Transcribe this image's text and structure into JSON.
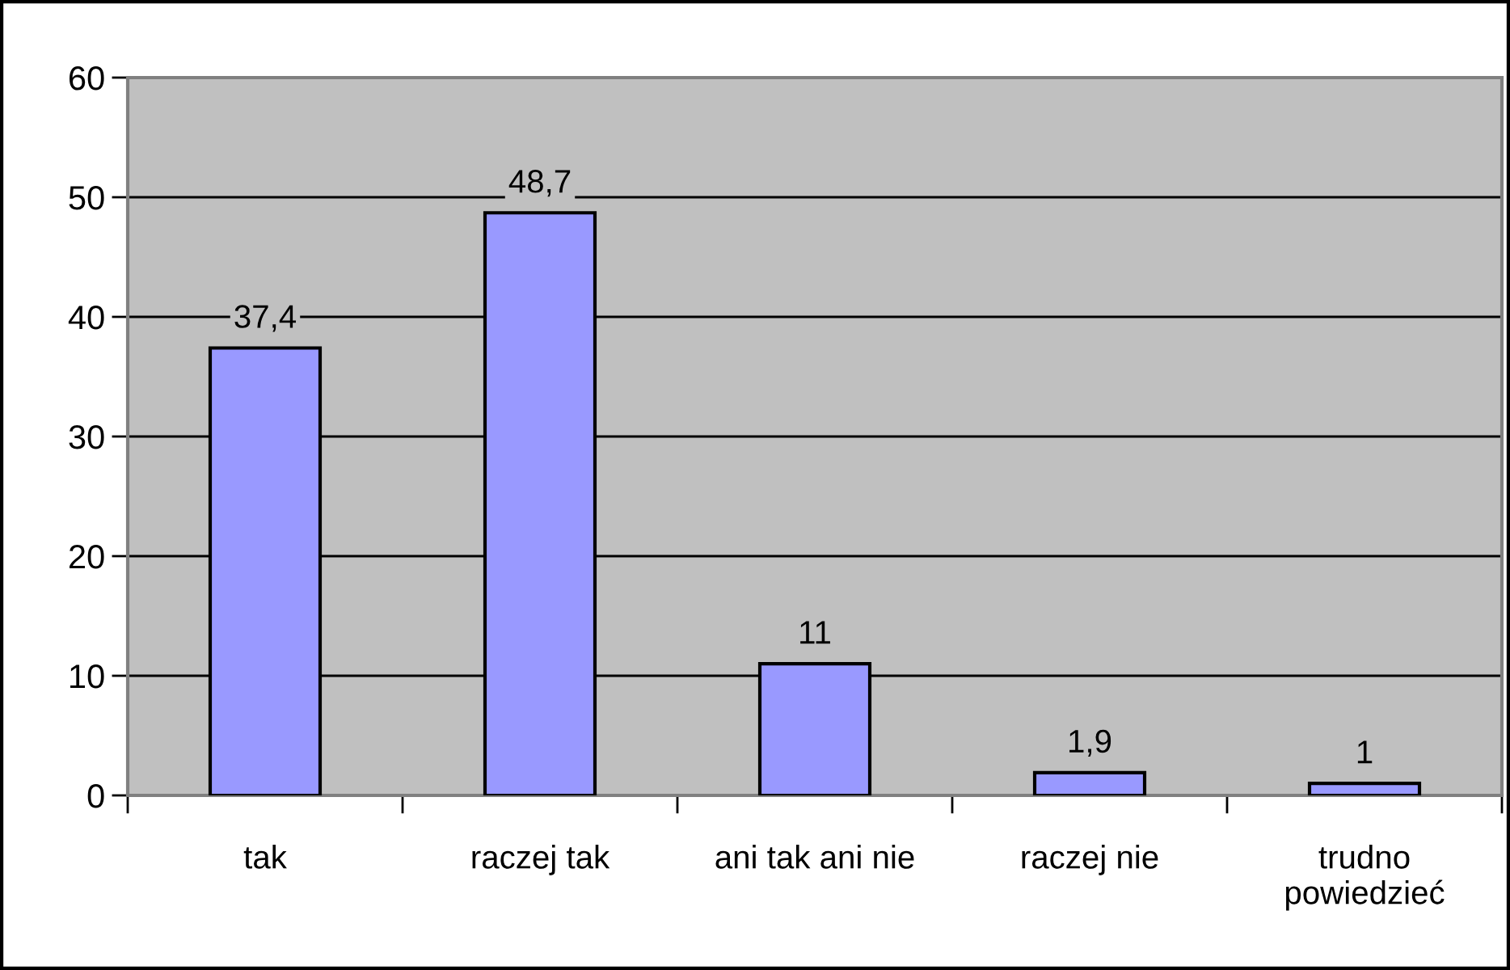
{
  "chart_data": {
    "type": "bar",
    "categories": [
      "tak",
      "raczej tak",
      "ani tak ani nie",
      "raczej nie",
      "trudno\npowiedzieć"
    ],
    "values": [
      37.4,
      48.7,
      11,
      1.9,
      1
    ],
    "value_labels": [
      "37,4",
      "48,7",
      "11",
      "1,9",
      "1"
    ],
    "color": "#9999ff",
    "ylim": [
      0,
      60
    ],
    "yticks": [
      0,
      10,
      20,
      30,
      40,
      50,
      60
    ],
    "grid": "y"
  }
}
